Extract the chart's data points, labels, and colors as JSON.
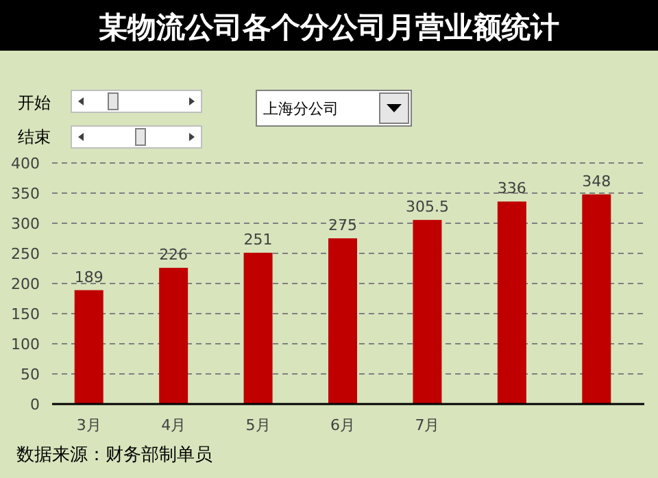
{
  "chart_data": {
    "type": "bar",
    "title": "某物流公司各个分公司月营业额统计",
    "categories": [
      "3月",
      "4月",
      "5月",
      "6月",
      "7月",
      null,
      null
    ],
    "values": [
      189,
      226,
      251,
      275,
      305.5,
      336,
      348
    ],
    "color": "#c00000",
    "ylim": [
      0,
      400
    ],
    "yticks": [
      0,
      50,
      100,
      150,
      200,
      250,
      300,
      350,
      400
    ],
    "grid": "y",
    "data_labels": true,
    "annotations": [
      "开始",
      "结束",
      "上海分公司",
      "数据来源：财务部制单员"
    ]
  }
}
